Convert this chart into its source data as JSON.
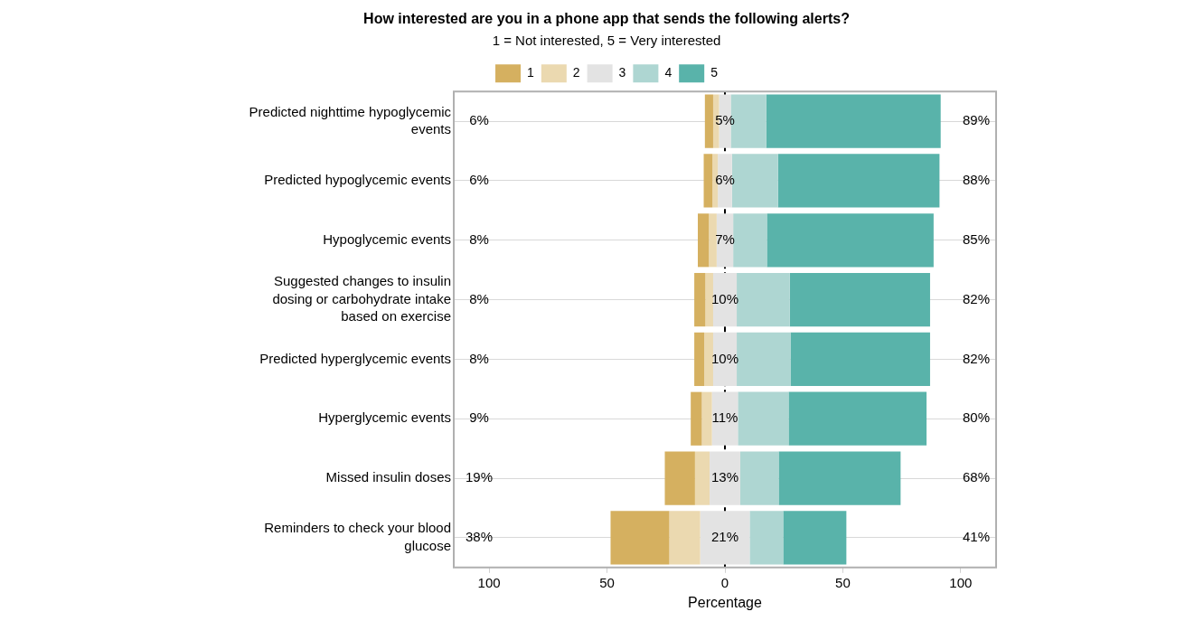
{
  "chart_data": {
    "type": "bar",
    "orientation": "horizontal",
    "title": "How interested are you in a phone app that sends the following alerts?",
    "subtitle": "1 = Not interested, 5 = Very interested",
    "xlabel": "Percentage",
    "categories": [
      "Predicted nighttime hypoglycemic events",
      "Predicted hypoglycemic events",
      "Hypoglycemic events",
      "Suggested changes to insulin dosing or carbohydrate intake based on exercise",
      "Predicted hyperglycemic events",
      "Hyperglycemic events",
      "Missed insulin doses",
      "Reminders to check your blood glucose"
    ],
    "series": [
      {
        "name": "1",
        "color": "#d5b060",
        "base": [
          -8.5,
          -9,
          -11.5,
          -13,
          -13,
          -14.5,
          -25.5,
          -48.5
        ],
        "values": [
          3.5,
          3.7,
          4.7,
          4.7,
          4.2,
          4.7,
          12.8,
          24.9
        ]
      },
      {
        "name": "2",
        "color": "#ebd9b0",
        "base": [
          -5,
          -5.3,
          -6.8,
          -8.3,
          -8.8,
          -9.8,
          -12.7,
          -23.6
        ],
        "values": [
          2.5,
          2.3,
          3.3,
          3.3,
          3.8,
          4.3,
          6.2,
          13.1
        ]
      },
      {
        "name": "3",
        "color": "#e3e3e3",
        "base": [
          -2.5,
          -3,
          -3.5,
          -5,
          -5,
          -5.5,
          -6.5,
          -10.5
        ],
        "values": [
          5,
          6,
          7,
          10,
          10,
          11,
          13,
          21
        ],
        "value_labels": [
          "5%",
          "6%",
          "7%",
          "10%",
          "10%",
          "11%",
          "13%",
          "21%"
        ]
      },
      {
        "name": "4",
        "color": "#aed6d2",
        "base": [
          2.5,
          3,
          3.5,
          5,
          5,
          5.5,
          6.5,
          10.5
        ],
        "values": [
          15,
          19.5,
          14.3,
          22.5,
          22.8,
          21.5,
          16.3,
          14.2
        ]
      },
      {
        "name": "5",
        "color": "#59b3aa",
        "base": [
          17.5,
          22.5,
          17.8,
          27.5,
          27.8,
          27,
          22.8,
          24.7
        ],
        "values": [
          74,
          68.5,
          70.7,
          59.5,
          59.2,
          58.5,
          51.7,
          26.8
        ]
      }
    ],
    "xlim": [
      -115,
      115
    ],
    "xticks": [
      {
        "value": -100,
        "label": "100"
      },
      {
        "value": -50,
        "label": "50"
      },
      0,
      50,
      100
    ],
    "ref_lines": [
      {
        "axis": "x",
        "value": 0,
        "color": "#000000",
        "line_style": "dashed"
      }
    ],
    "annotations": [
      "6%",
      "6%",
      "8%",
      "8%",
      "8%",
      "9%",
      "19%",
      "38%",
      "89%",
      "88%",
      "85%",
      "82%",
      "82%",
      "80%",
      "68%",
      "41%"
    ],
    "grid": "y",
    "legend": "top"
  }
}
